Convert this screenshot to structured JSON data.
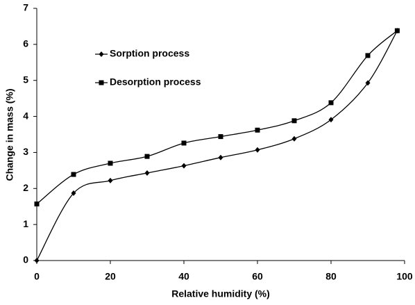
{
  "chart_data": {
    "type": "line",
    "x_label": "Relative humidity (%)",
    "y_label": "Change in mass (%)",
    "x": [
      0,
      10,
      20,
      30,
      40,
      50,
      60,
      70,
      80,
      90,
      98
    ],
    "series": [
      {
        "name": "Sorption process",
        "color": "#000000",
        "marker": "diamond",
        "values": [
          0,
          1.87,
          2.22,
          2.43,
          2.63,
          2.86,
          3.07,
          3.38,
          3.91,
          4.93,
          6.38
        ]
      },
      {
        "name": "Desorption process",
        "color": "#000000",
        "marker": "square",
        "values": [
          1.57,
          2.39,
          2.7,
          2.89,
          3.26,
          3.44,
          3.62,
          3.88,
          4.38,
          5.69,
          6.38
        ]
      }
    ],
    "xlim": [
      0,
      100
    ],
    "xticks": [
      0,
      20,
      40,
      60,
      80,
      100
    ],
    "ylim": [
      0,
      7
    ],
    "yticks": [
      0,
      1,
      2,
      3,
      4,
      5,
      6,
      7
    ],
    "smooth": true,
    "grid": false
  }
}
